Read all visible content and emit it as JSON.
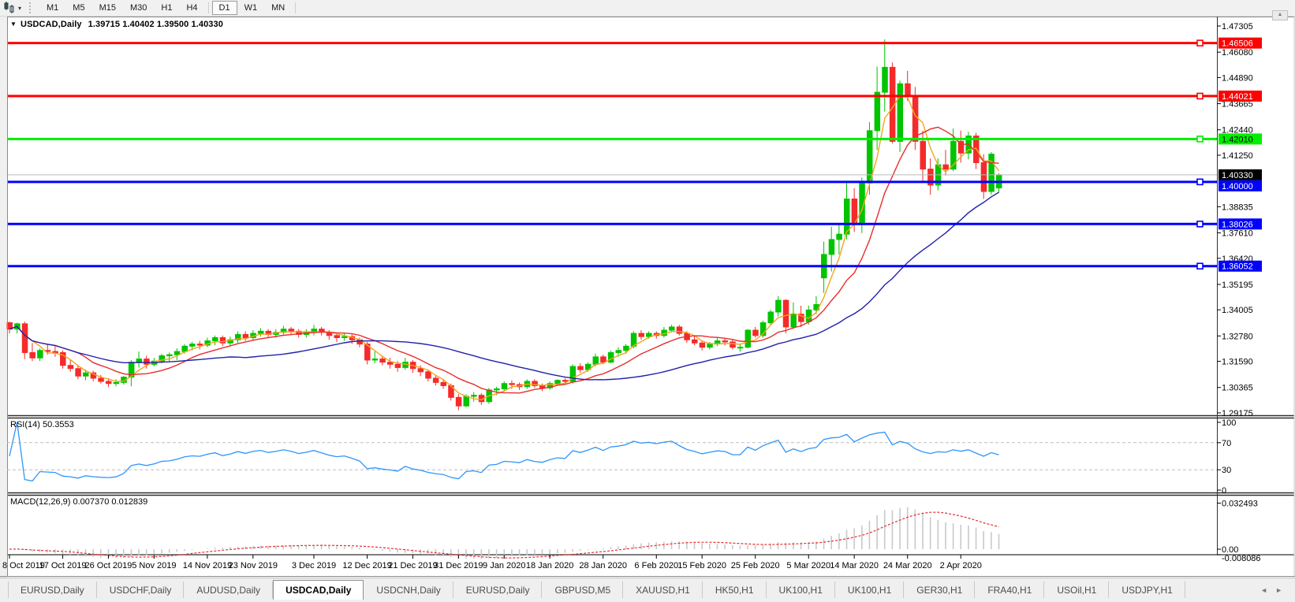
{
  "toolbar": {
    "timeframes": [
      "M1",
      "M5",
      "M15",
      "M30",
      "H1",
      "H4",
      "D1",
      "W1",
      "MN"
    ],
    "active_timeframe": "D1",
    "dropdown_icon": "▾"
  },
  "chart_header": {
    "collapse_icon": "▼",
    "symbol_label": "USDCAD,Daily",
    "ohlc": "1.39715 1.40402 1.39500 1.40330"
  },
  "scroll_up_icon": "▲",
  "chart_data": {
    "type": "candlestick",
    "symbol": "USDCAD",
    "timeframe": "Daily",
    "title_ohlc": "1.39715 1.40402 1.39500 1.40330",
    "y_range": [
      1.2905,
      1.4775
    ],
    "bull_color": "#00c400",
    "bear_color": "#f52a2a",
    "price_axis_ticks": [
      "1.47305",
      "1.46080",
      "1.44890",
      "1.43665",
      "1.42440",
      "1.41250",
      "1.38835",
      "1.37610",
      "1.36420",
      "1.35195",
      "1.34005",
      "1.32780",
      "1.31590",
      "1.30365",
      "1.29175"
    ],
    "x_axis_labels": [
      {
        "label": "8 Oct 2019",
        "candle_index": 0
      },
      {
        "label": "17 Oct 2019",
        "candle_index": 7
      },
      {
        "label": "26 Oct 2019",
        "candle_index": 13
      },
      {
        "label": "5 Nov 2019",
        "candle_index": 19
      },
      {
        "label": "14 Nov 2019",
        "candle_index": 26
      },
      {
        "label": "23 Nov 2019",
        "candle_index": 32
      },
      {
        "label": "3 Dec 2019",
        "candle_index": 40
      },
      {
        "label": "12 Dec 2019",
        "candle_index": 47
      },
      {
        "label": "21 Dec 2019",
        "candle_index": 53
      },
      {
        "label": "31 Dec 2019",
        "candle_index": 59
      },
      {
        "label": "9 Jan 2020",
        "candle_index": 65
      },
      {
        "label": "18 Jan 2020",
        "candle_index": 71
      },
      {
        "label": "28 Jan 2020",
        "candle_index": 78
      },
      {
        "label": "6 Feb 2020",
        "candle_index": 85
      },
      {
        "label": "15 Feb 2020",
        "candle_index": 91
      },
      {
        "label": "25 Feb 2020",
        "candle_index": 98
      },
      {
        "label": "5 Mar 2020",
        "candle_index": 105
      },
      {
        "label": "14 Mar 2020",
        "candle_index": 111
      },
      {
        "label": "24 Mar 2020",
        "candle_index": 118
      },
      {
        "label": "2 Apr 2020",
        "candle_index": 125
      }
    ],
    "horizontal_levels": [
      {
        "price": 1.46506,
        "label": "1.46506",
        "color": "#ff0000",
        "text_color": "#ffffff"
      },
      {
        "price": 1.44021,
        "label": "1.44021",
        "color": "#ff0000",
        "text_color": "#ffffff"
      },
      {
        "price": 1.4201,
        "label": "1.42010",
        "color": "#00ee00",
        "text_color": "#000000"
      },
      {
        "price": 1.4,
        "label": "1.40000",
        "color": "#0000ff",
        "text_color": "#ffffff"
      },
      {
        "price": 1.38026,
        "label": "1.38026",
        "color": "#0000ff",
        "text_color": "#ffffff"
      },
      {
        "price": 1.36052,
        "label": "1.36052",
        "color": "#0000ff",
        "text_color": "#ffffff"
      }
    ],
    "current_price": {
      "price": 1.4033,
      "label": "1.40330",
      "line_color": "#bbbbbb",
      "badge_color": "#000000",
      "text_color": "#ffffff"
    },
    "moving_averages": [
      {
        "name": "fast",
        "period": 4,
        "color": "#f2a51e"
      },
      {
        "name": "medium",
        "period": 10,
        "color": "#e62e2e"
      },
      {
        "name": "slow",
        "period": 30,
        "color": "#2121aa"
      }
    ],
    "indicators": [
      {
        "name": "RSI",
        "label_full": "RSI(14) 50.3553",
        "period": 14,
        "line_color": "#2f95fb",
        "levels": [
          70,
          30
        ],
        "scale_ticks": [
          "100",
          "70",
          "30",
          "0"
        ],
        "range": [
          0,
          100
        ]
      },
      {
        "name": "MACD",
        "label_full": "MACD(12,26,9) 0.007370 0.012839",
        "fast": 12,
        "slow": 26,
        "signal": 9,
        "histogram_color": "#c9c9c9",
        "signal_color": "#e62e2e",
        "signal_style": "dashed",
        "scale_ticks": [
          "0.032493",
          "0.00",
          "-0.008086"
        ],
        "range": [
          -0.008086,
          0.032493
        ]
      }
    ],
    "candles": [
      [
        1.334,
        1.3345,
        1.329,
        1.331
      ],
      [
        1.331,
        1.334,
        1.329,
        1.3335
      ],
      [
        1.3335,
        1.3345,
        1.317,
        1.32
      ],
      [
        1.32,
        1.3245,
        1.316,
        1.3175
      ],
      [
        1.3175,
        1.322,
        1.316,
        1.321
      ],
      [
        1.321,
        1.324,
        1.319,
        1.3205
      ],
      [
        1.3205,
        1.323,
        1.318,
        1.32
      ],
      [
        1.32,
        1.321,
        1.3125,
        1.314
      ],
      [
        1.314,
        1.3165,
        1.311,
        1.3125
      ],
      [
        1.3125,
        1.314,
        1.3075,
        1.309
      ],
      [
        1.309,
        1.312,
        1.307,
        1.3105
      ],
      [
        1.3105,
        1.3115,
        1.3065,
        1.308
      ],
      [
        1.308,
        1.3095,
        1.3055,
        1.3065
      ],
      [
        1.3065,
        1.308,
        1.3038,
        1.3055
      ],
      [
        1.3055,
        1.3075,
        1.3042,
        1.306
      ],
      [
        1.306,
        1.309,
        1.305,
        1.3085
      ],
      [
        1.3085,
        1.3165,
        1.3042,
        1.3155
      ],
      [
        1.3155,
        1.3205,
        1.313,
        1.317
      ],
      [
        1.317,
        1.3185,
        1.3125,
        1.3145
      ],
      [
        1.3145,
        1.3175,
        1.3135,
        1.316
      ],
      [
        1.316,
        1.3195,
        1.315,
        1.3185
      ],
      [
        1.3185,
        1.32,
        1.316,
        1.319
      ],
      [
        1.319,
        1.322,
        1.3165,
        1.3205
      ],
      [
        1.3205,
        1.324,
        1.3195,
        1.323
      ],
      [
        1.323,
        1.325,
        1.321,
        1.324
      ],
      [
        1.324,
        1.3255,
        1.3215,
        1.3235
      ],
      [
        1.3235,
        1.327,
        1.3225,
        1.3255
      ],
      [
        1.3255,
        1.328,
        1.3235,
        1.327
      ],
      [
        1.327,
        1.328,
        1.323,
        1.3245
      ],
      [
        1.3245,
        1.3275,
        1.323,
        1.326
      ],
      [
        1.326,
        1.33,
        1.3245,
        1.3285
      ],
      [
        1.3285,
        1.33,
        1.3255,
        1.327
      ],
      [
        1.327,
        1.3305,
        1.326,
        1.329
      ],
      [
        1.329,
        1.3315,
        1.3275,
        1.33
      ],
      [
        1.33,
        1.331,
        1.327,
        1.3285
      ],
      [
        1.3285,
        1.331,
        1.327,
        1.3295
      ],
      [
        1.3295,
        1.3325,
        1.3285,
        1.331
      ],
      [
        1.331,
        1.332,
        1.3285,
        1.33
      ],
      [
        1.33,
        1.331,
        1.327,
        1.3285
      ],
      [
        1.3285,
        1.331,
        1.327,
        1.3295
      ],
      [
        1.3295,
        1.333,
        1.328,
        1.331
      ],
      [
        1.331,
        1.332,
        1.328,
        1.3295
      ],
      [
        1.3295,
        1.3305,
        1.326,
        1.328
      ],
      [
        1.328,
        1.329,
        1.325,
        1.327
      ],
      [
        1.327,
        1.329,
        1.3255,
        1.3275
      ],
      [
        1.3275,
        1.3285,
        1.324,
        1.326
      ],
      [
        1.326,
        1.327,
        1.3225,
        1.324
      ],
      [
        1.324,
        1.325,
        1.3145,
        1.3165
      ],
      [
        1.3165,
        1.3205,
        1.315,
        1.317
      ],
      [
        1.317,
        1.3185,
        1.314,
        1.3155
      ],
      [
        1.3155,
        1.3175,
        1.3125,
        1.3145
      ],
      [
        1.3145,
        1.316,
        1.311,
        1.313
      ],
      [
        1.313,
        1.3175,
        1.312,
        1.3155
      ],
      [
        1.3155,
        1.3165,
        1.3105,
        1.3125
      ],
      [
        1.3125,
        1.314,
        1.309,
        1.311
      ],
      [
        1.311,
        1.312,
        1.3065,
        1.308
      ],
      [
        1.308,
        1.3095,
        1.3045,
        1.306
      ],
      [
        1.306,
        1.3075,
        1.303,
        1.3045
      ],
      [
        1.3045,
        1.3055,
        1.2975,
        1.299
      ],
      [
        1.299,
        1.3005,
        1.293,
        1.295
      ],
      [
        1.295,
        1.3005,
        1.2945,
        1.2995
      ],
      [
        1.2995,
        1.3015,
        1.297,
        1.3
      ],
      [
        1.3,
        1.301,
        1.2955,
        1.297
      ],
      [
        1.297,
        1.3035,
        1.296,
        1.3025
      ],
      [
        1.3025,
        1.304,
        1.3,
        1.303
      ],
      [
        1.303,
        1.3065,
        1.302,
        1.3055
      ],
      [
        1.3055,
        1.307,
        1.303,
        1.305
      ],
      [
        1.305,
        1.306,
        1.3025,
        1.304
      ],
      [
        1.304,
        1.3075,
        1.303,
        1.3065
      ],
      [
        1.3065,
        1.3075,
        1.3035,
        1.3045
      ],
      [
        1.3045,
        1.3055,
        1.302,
        1.3035
      ],
      [
        1.3035,
        1.3065,
        1.3025,
        1.3055
      ],
      [
        1.3055,
        1.3075,
        1.3045,
        1.307
      ],
      [
        1.307,
        1.308,
        1.305,
        1.3065
      ],
      [
        1.3065,
        1.3145,
        1.3055,
        1.3135
      ],
      [
        1.3135,
        1.315,
        1.3105,
        1.312
      ],
      [
        1.312,
        1.3155,
        1.311,
        1.3145
      ],
      [
        1.3145,
        1.3195,
        1.3135,
        1.318
      ],
      [
        1.318,
        1.319,
        1.3145,
        1.3155
      ],
      [
        1.3155,
        1.321,
        1.315,
        1.32
      ],
      [
        1.32,
        1.3225,
        1.318,
        1.321
      ],
      [
        1.321,
        1.324,
        1.3195,
        1.323
      ],
      [
        1.323,
        1.33,
        1.322,
        1.329
      ],
      [
        1.329,
        1.3305,
        1.326,
        1.3275
      ],
      [
        1.3275,
        1.33,
        1.3265,
        1.329
      ],
      [
        1.329,
        1.33,
        1.3265,
        1.328
      ],
      [
        1.328,
        1.332,
        1.327,
        1.3305
      ],
      [
        1.3305,
        1.333,
        1.3295,
        1.332
      ],
      [
        1.332,
        1.333,
        1.328,
        1.329
      ],
      [
        1.329,
        1.33,
        1.3245,
        1.326
      ],
      [
        1.326,
        1.3275,
        1.3235,
        1.3245
      ],
      [
        1.3245,
        1.3255,
        1.321,
        1.3225
      ],
      [
        1.3225,
        1.325,
        1.3215,
        1.324
      ],
      [
        1.324,
        1.327,
        1.323,
        1.3255
      ],
      [
        1.3255,
        1.3265,
        1.3235,
        1.325
      ],
      [
        1.325,
        1.326,
        1.3215,
        1.3225
      ],
      [
        1.3225,
        1.324,
        1.3205,
        1.3225
      ],
      [
        1.3225,
        1.331,
        1.322,
        1.3305
      ],
      [
        1.3305,
        1.332,
        1.327,
        1.328
      ],
      [
        1.328,
        1.335,
        1.327,
        1.334
      ],
      [
        1.334,
        1.34,
        1.333,
        1.339
      ],
      [
        1.339,
        1.3465,
        1.337,
        1.3445
      ],
      [
        1.3445,
        1.345,
        1.329,
        1.332
      ],
      [
        1.332,
        1.3435,
        1.331,
        1.338
      ],
      [
        1.338,
        1.342,
        1.332,
        1.3345
      ],
      [
        1.3345,
        1.342,
        1.333,
        1.34
      ],
      [
        1.34,
        1.3465,
        1.338,
        1.3425
      ],
      [
        1.355,
        1.372,
        1.348,
        1.366
      ],
      [
        1.366,
        1.379,
        1.358,
        1.373
      ],
      [
        1.373,
        1.3805,
        1.366,
        1.3755
      ],
      [
        1.3755,
        1.3995,
        1.373,
        1.392
      ],
      [
        1.392,
        1.397,
        1.3765,
        1.38
      ],
      [
        1.38,
        1.402,
        1.376,
        1.3995
      ],
      [
        1.3995,
        1.428,
        1.394,
        1.424
      ],
      [
        1.424,
        1.454,
        1.415,
        1.442
      ],
      [
        1.442,
        1.4668,
        1.433,
        1.4537
      ],
      [
        1.4537,
        1.456,
        1.418,
        1.419
      ],
      [
        1.419,
        1.4475,
        1.414,
        1.446
      ],
      [
        1.446,
        1.452,
        1.438,
        1.44
      ],
      [
        1.44,
        1.4445,
        1.415,
        1.419
      ],
      [
        1.419,
        1.424,
        1.4005,
        1.406
      ],
      [
        1.406,
        1.411,
        1.394,
        1.3985
      ],
      [
        1.3985,
        1.411,
        1.396,
        1.408
      ],
      [
        1.408,
        1.415,
        1.403,
        1.406
      ],
      [
        1.406,
        1.425,
        1.405,
        1.419
      ],
      [
        1.419,
        1.424,
        1.409,
        1.4135
      ],
      [
        1.4135,
        1.4235,
        1.4105,
        1.4215
      ],
      [
        1.4215,
        1.423,
        1.406,
        1.409
      ],
      [
        1.409,
        1.413,
        1.392,
        1.3955
      ],
      [
        1.3955,
        1.414,
        1.394,
        1.413
      ],
      [
        1.39715,
        1.40402,
        1.395,
        1.4033
      ]
    ]
  },
  "tab_bar": {
    "tabs": [
      "EURUSD,Daily",
      "USDCHF,Daily",
      "AUDUSD,Daily",
      "USDCAD,Daily",
      "USDCNH,Daily",
      "EURUSD,Daily",
      "GBPUSD,M5",
      "XAUUSD,H1",
      "HK50,H1",
      "UK100,H1",
      "UK100,H1",
      "GER30,H1",
      "FRA40,H1",
      "USOil,H1",
      "USDJPY,H1"
    ],
    "active_index": 3,
    "nav_left_icon": "◄",
    "nav_right_icon": "►"
  }
}
